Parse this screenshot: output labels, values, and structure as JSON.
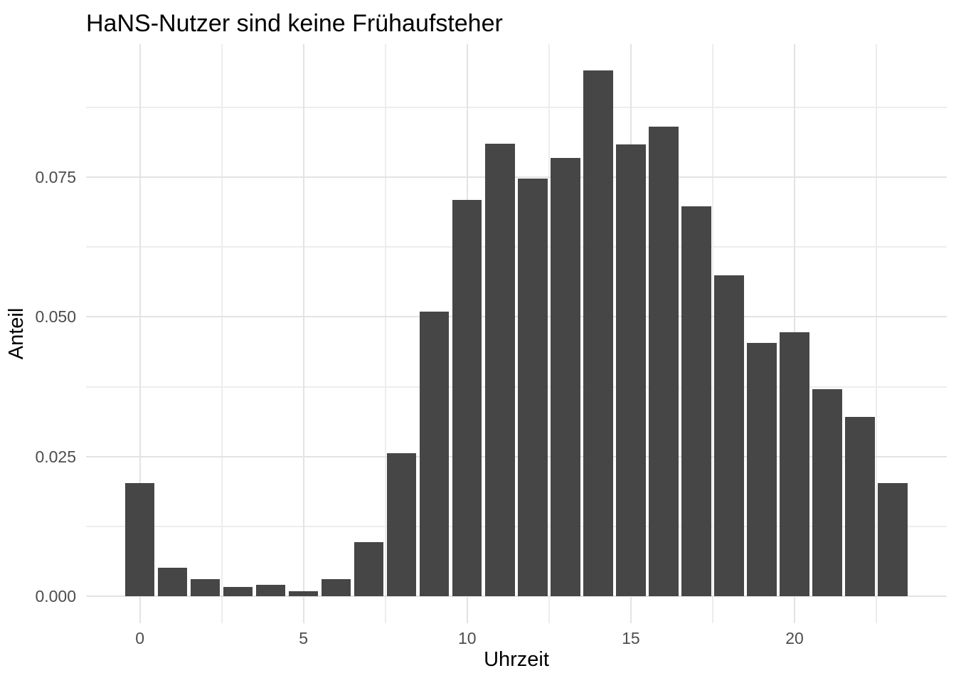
{
  "chart_data": {
    "type": "bar",
    "title": "HaNS-Nutzer sind keine Frühaufsteher",
    "xlabel": "Uhrzeit",
    "ylabel": "Anteil",
    "categories": [
      0,
      1,
      2,
      3,
      4,
      5,
      6,
      7,
      8,
      9,
      10,
      11,
      12,
      13,
      14,
      15,
      16,
      17,
      18,
      19,
      20,
      21,
      22,
      23
    ],
    "values": [
      0.0203,
      0.0051,
      0.0031,
      0.0017,
      0.0021,
      0.0009,
      0.0031,
      0.0097,
      0.0256,
      0.051,
      0.071,
      0.081,
      0.0748,
      0.0784,
      0.0941,
      0.0809,
      0.084,
      0.0698,
      0.0575,
      0.0453,
      0.0473,
      0.037,
      0.0321,
      0.0203
    ],
    "x_major_ticks": [
      0,
      5,
      10,
      15,
      20
    ],
    "x_tick_labels": [
      "0",
      "5",
      "10",
      "15",
      "20"
    ],
    "x_minor_ticks": [
      2.5,
      7.5,
      12.5,
      17.5,
      22.5
    ],
    "y_major_ticks": [
      0.0,
      0.025,
      0.05,
      0.075
    ],
    "y_tick_labels": [
      "0.000",
      "0.025",
      "0.050",
      "0.075"
    ],
    "y_minor_ticks": [
      0.0125,
      0.0375,
      0.0625,
      0.0875
    ],
    "ylim": [
      -0.0049,
      0.0988
    ],
    "bar_width_fraction": 0.9,
    "grid": true,
    "legend_position": "none",
    "colors": {
      "bar": "#464646",
      "grid_major": "#e3e3e3",
      "grid_minor": "#ededed",
      "tick_text": "#4d4d4d",
      "title_text": "#000000",
      "axis_title_text": "#000000",
      "background": "#ffffff"
    }
  }
}
